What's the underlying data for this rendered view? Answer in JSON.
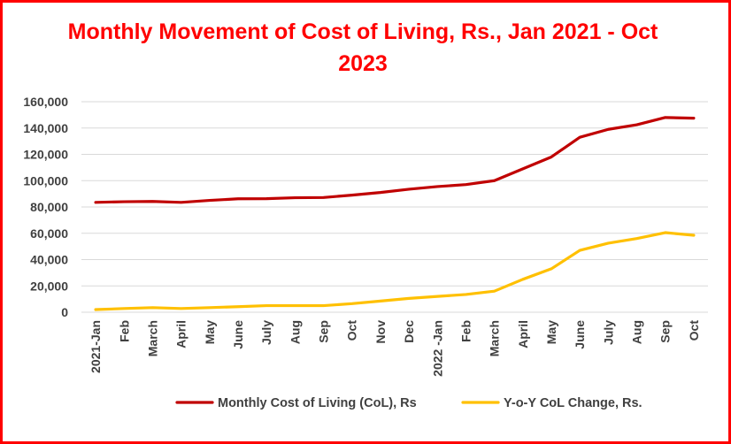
{
  "chart_data": {
    "type": "line",
    "title": "Monthly Movement of Cost of Living, Rs., Jan 2021 - Oct 2023",
    "categories": [
      "2021-Jan",
      "Feb",
      "March",
      "April",
      "May",
      "June",
      "July",
      "Aug",
      "Sep",
      "Oct",
      "Nov",
      "Dec",
      "2022 -Jan",
      "Feb",
      "March",
      "April",
      "May",
      "June",
      "July",
      "Aug",
      "Sep",
      "Oct"
    ],
    "y_ticks": [
      "0",
      "20,000",
      "40,000",
      "60,000",
      "80,000",
      "100,000",
      "120,000",
      "140,000",
      "160,000"
    ],
    "ylim": [
      0,
      160000
    ],
    "grid": true,
    "legend_position": "bottom",
    "series": [
      {
        "name": "Monthly Cost of Living (CoL), Rs",
        "color": "#c00000",
        "values": [
          83500,
          84000,
          84200,
          83500,
          85000,
          86200,
          86300,
          87000,
          87200,
          89000,
          91000,
          93500,
          95500,
          97000,
          100000,
          109000,
          118000,
          133000,
          139000,
          142500,
          148000,
          147500
        ]
      },
      {
        "name": "Y-o-Y CoL Change, Rs.",
        "color": "#ffc000",
        "values": [
          2000,
          2800,
          3500,
          2800,
          3500,
          4200,
          5000,
          5000,
          5000,
          6500,
          8500,
          10500,
          12000,
          13500,
          16000,
          25000,
          33000,
          47000,
          52500,
          56000,
          60500,
          58500
        ]
      }
    ]
  }
}
